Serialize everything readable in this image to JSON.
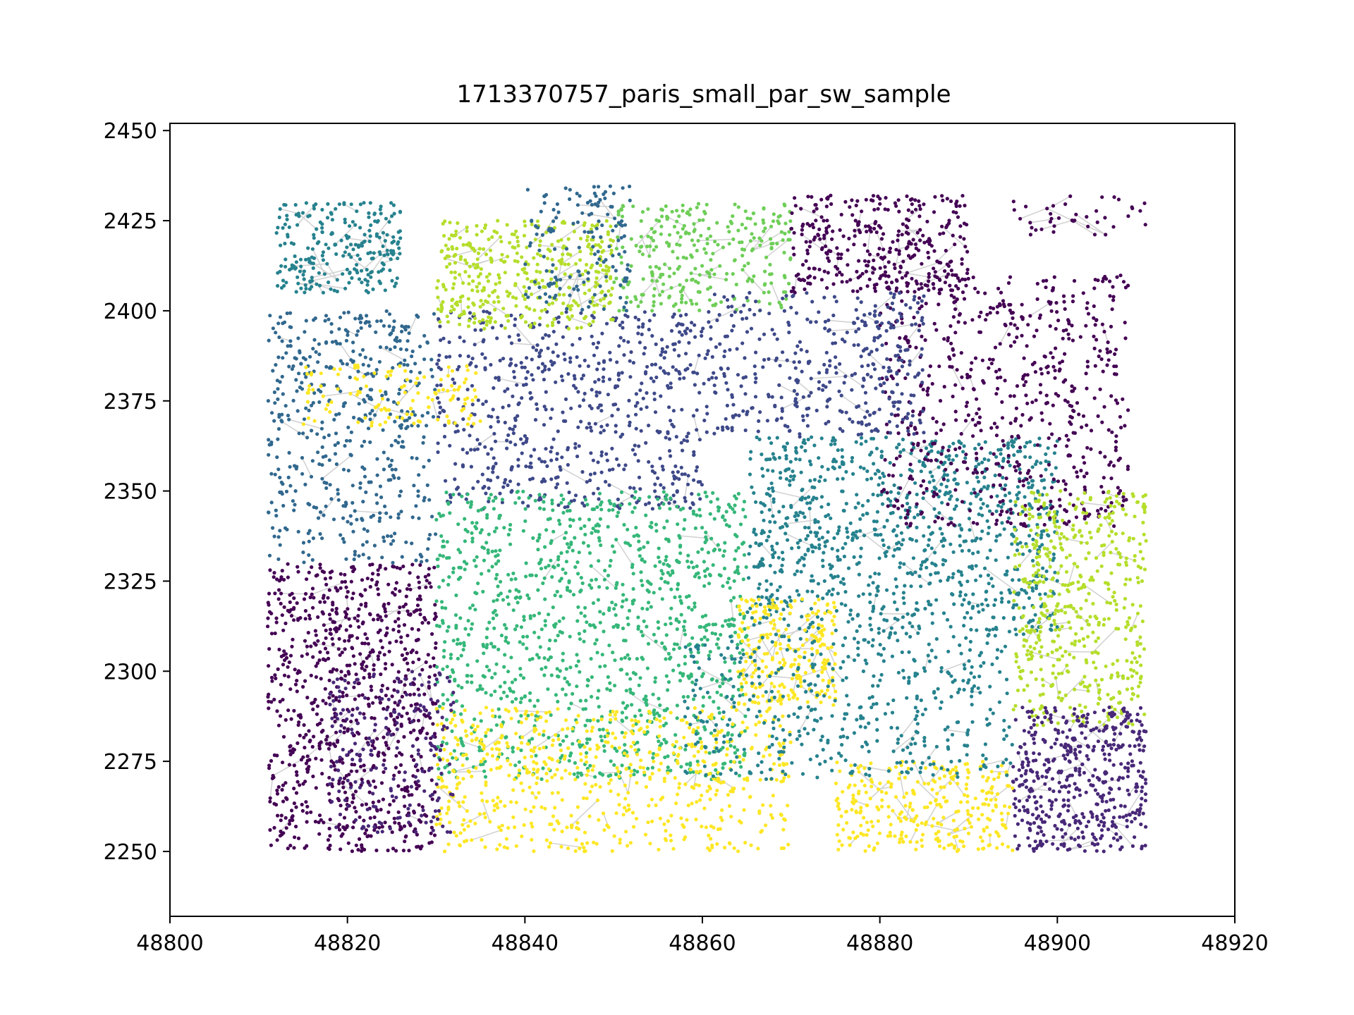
{
  "chart_data": {
    "type": "scatter",
    "title": "1713370757_paris_small_par_sw_sample",
    "xlabel": "",
    "ylabel": "",
    "xlim": [
      48800,
      48920
    ],
    "ylim": [
      2232,
      2452
    ],
    "x_ticks": [
      48800,
      48820,
      48840,
      48860,
      48880,
      48900,
      48920
    ],
    "y_ticks": [
      2250,
      2275,
      2300,
      2325,
      2350,
      2375,
      2400,
      2425,
      2450
    ],
    "x_tick_labels": [
      "48800",
      "48820",
      "48840",
      "48860",
      "48880",
      "48900",
      "48920"
    ],
    "y_tick_labels": [
      "2250",
      "2275",
      "2300",
      "2325",
      "2350",
      "2375",
      "2400",
      "2425",
      "2450"
    ],
    "grid": false,
    "legend": "none",
    "edge_color": "#d3d3d3",
    "colormap": "viridis",
    "palette": [
      "#440154",
      "#482878",
      "#3e4989",
      "#31688e",
      "#26828e",
      "#1f9e89",
      "#35b779",
      "#6ece58",
      "#b5de2b",
      "#fde725"
    ],
    "clusters": [
      {
        "x": [
          48811,
          48830
        ],
        "y": [
          2250,
          2330
        ],
        "color_index": 0,
        "count": 900
      },
      {
        "x": [
          48811,
          48830
        ],
        "y": [
          2330,
          2400
        ],
        "color_index": 3,
        "count": 500
      },
      {
        "x": [
          48812,
          48826
        ],
        "y": [
          2405,
          2430
        ],
        "color_index": 4,
        "count": 250
      },
      {
        "x": [
          48830,
          48860
        ],
        "y": [
          2345,
          2400
        ],
        "color_index": 2,
        "count": 650
      },
      {
        "x": [
          48830,
          48850
        ],
        "y": [
          2395,
          2425
        ],
        "color_index": 8,
        "count": 400
      },
      {
        "x": [
          48850,
          48870
        ],
        "y": [
          2400,
          2430
        ],
        "color_index": 7,
        "count": 300
      },
      {
        "x": [
          48830,
          48865
        ],
        "y": [
          2270,
          2350
        ],
        "color_index": 6,
        "count": 1200
      },
      {
        "x": [
          48865,
          48900
        ],
        "y": [
          2310,
          2365
        ],
        "color_index": 4,
        "count": 1000
      },
      {
        "x": [
          48870,
          48890
        ],
        "y": [
          2405,
          2432
        ],
        "color_index": 0,
        "count": 350
      },
      {
        "x": [
          48880,
          48908
        ],
        "y": [
          2340,
          2410
        ],
        "color_index": 0,
        "count": 650
      },
      {
        "x": [
          48860,
          48885
        ],
        "y": [
          2365,
          2405
        ],
        "color_index": 2,
        "count": 400
      },
      {
        "x": [
          48895,
          48910
        ],
        "y": [
          2285,
          2350
        ],
        "color_index": 8,
        "count": 500
      },
      {
        "x": [
          48830,
          48870
        ],
        "y": [
          2250,
          2290
        ],
        "color_index": 9,
        "count": 650
      },
      {
        "x": [
          48864,
          48875
        ],
        "y": [
          2290,
          2320
        ],
        "color_index": 9,
        "count": 250
      },
      {
        "x": [
          48895,
          48910
        ],
        "y": [
          2250,
          2290
        ],
        "color_index": 1,
        "count": 500
      },
      {
        "x": [
          48875,
          48895
        ],
        "y": [
          2250,
          2275
        ],
        "color_index": 9,
        "count": 300
      },
      {
        "x": [
          48858,
          48895
        ],
        "y": [
          2270,
          2310
        ],
        "color_index": 4,
        "count": 450
      },
      {
        "x": [
          48815,
          48835
        ],
        "y": [
          2368,
          2385
        ],
        "color_index": 9,
        "count": 120
      },
      {
        "x": [
          48818,
          48832
        ],
        "y": [
          2255,
          2300
        ],
        "color_index": 1,
        "count": 200
      },
      {
        "x": [
          48840,
          48852
        ],
        "y": [
          2400,
          2435
        ],
        "color_index": 3,
        "count": 150
      },
      {
        "x": [
          48895,
          48910
        ],
        "y": [
          2420,
          2432
        ],
        "color_index": 0,
        "count": 40
      }
    ]
  }
}
